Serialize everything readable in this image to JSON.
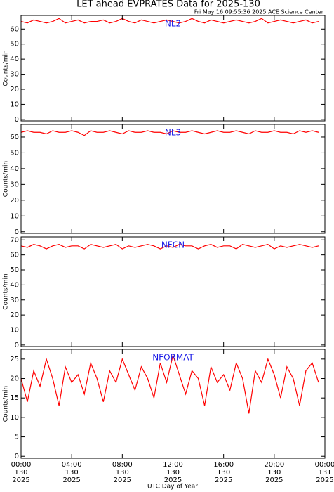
{
  "header": {
    "title": "LET ahead EVPRATES Data for 2025-130",
    "subtitle": "Fri May 16 09:55:36 2025 ACE Science Center",
    "xlabel": "UTC Day of Year"
  },
  "chart_data": [
    {
      "type": "line",
      "ylabel": "Counts/min",
      "xlim": [
        0,
        24
      ],
      "ylim": [
        -1,
        69
      ],
      "yticks": [
        0,
        10,
        20,
        30,
        40,
        50,
        60
      ],
      "x": [
        0,
        0.5,
        1,
        1.5,
        2,
        2.5,
        3,
        3.5,
        4,
        4.5,
        5,
        5.5,
        6,
        6.5,
        7,
        7.5,
        8,
        8.5,
        9,
        9.5,
        10,
        10.5,
        11,
        11.5,
        12,
        12.5,
        13,
        13.5,
        14,
        14.5,
        15,
        15.5,
        16,
        16.5,
        17,
        17.5,
        18,
        18.5,
        19,
        19.5,
        20,
        20.5,
        21,
        21.5,
        22,
        22.5,
        23,
        23.5
      ],
      "series": [
        {
          "name": "NL2",
          "color": "#ff0000",
          "values": [
            65,
            64,
            66,
            65,
            64,
            65,
            67,
            64,
            65,
            66,
            64,
            65,
            65,
            66,
            64,
            65,
            67,
            65,
            64,
            66,
            65,
            64,
            65,
            66,
            65,
            64,
            65,
            67,
            65,
            64,
            66,
            65,
            64,
            65,
            66,
            65,
            64,
            65,
            67,
            64,
            65,
            66,
            65,
            64,
            65,
            66,
            64,
            65
          ]
        }
      ]
    },
    {
      "type": "line",
      "ylabel": "Counts/min",
      "xlim": [
        0,
        24
      ],
      "ylim": [
        -1,
        68
      ],
      "yticks": [
        0,
        10,
        20,
        30,
        40,
        50,
        60
      ],
      "x": [
        0,
        0.5,
        1,
        1.5,
        2,
        2.5,
        3,
        3.5,
        4,
        4.5,
        5,
        5.5,
        6,
        6.5,
        7,
        7.5,
        8,
        8.5,
        9,
        9.5,
        10,
        10.5,
        11,
        11.5,
        12,
        12.5,
        13,
        13.5,
        14,
        14.5,
        15,
        15.5,
        16,
        16.5,
        17,
        17.5,
        18,
        18.5,
        19,
        19.5,
        20,
        20.5,
        21,
        21.5,
        22,
        22.5,
        23,
        23.5
      ],
      "series": [
        {
          "name": "NL3",
          "color": "#ff0000",
          "values": [
            63,
            64,
            63,
            63,
            62,
            64,
            63,
            63,
            64,
            63,
            61,
            64,
            63,
            63,
            64,
            63,
            62,
            64,
            63,
            63,
            64,
            63,
            63,
            62,
            64,
            63,
            63,
            64,
            63,
            62,
            63,
            64,
            63,
            63,
            64,
            63,
            62,
            64,
            63,
            63,
            64,
            63,
            63,
            62,
            64,
            63,
            64,
            63
          ]
        }
      ]
    },
    {
      "type": "line",
      "ylabel": "Counts/min",
      "xlim": [
        0,
        24
      ],
      "ylim": [
        -1,
        72
      ],
      "yticks": [
        0,
        10,
        20,
        30,
        40,
        50,
        60,
        70
      ],
      "x": [
        0,
        0.5,
        1,
        1.5,
        2,
        2.5,
        3,
        3.5,
        4,
        4.5,
        5,
        5.5,
        6,
        6.5,
        7,
        7.5,
        8,
        8.5,
        9,
        9.5,
        10,
        10.5,
        11,
        11.5,
        12,
        12.5,
        13,
        13.5,
        14,
        14.5,
        15,
        15.5,
        16,
        16.5,
        17,
        17.5,
        18,
        18.5,
        19,
        19.5,
        20,
        20.5,
        21,
        21.5,
        22,
        22.5,
        23,
        23.5
      ],
      "series": [
        {
          "name": "NFCN",
          "color": "#ff0000",
          "values": [
            66,
            65,
            67,
            66,
            64,
            66,
            67,
            65,
            66,
            66,
            64,
            67,
            66,
            65,
            66,
            67,
            64,
            66,
            65,
            66,
            67,
            66,
            64,
            66,
            65,
            67,
            66,
            66,
            64,
            66,
            67,
            65,
            66,
            66,
            64,
            67,
            66,
            65,
            66,
            67,
            64,
            66,
            65,
            66,
            67,
            66,
            65,
            66
          ]
        }
      ]
    },
    {
      "type": "line",
      "ylabel": "Counts/min",
      "xlim": [
        0,
        24
      ],
      "ylim": [
        -0.5,
        27.5
      ],
      "yticks": [
        0,
        5,
        10,
        15,
        20,
        25
      ],
      "x": [
        0,
        0.5,
        1,
        1.5,
        2,
        2.5,
        3,
        3.5,
        4,
        4.5,
        5,
        5.5,
        6,
        6.5,
        7,
        7.5,
        8,
        8.5,
        9,
        9.5,
        10,
        10.5,
        11,
        11.5,
        12,
        12.5,
        13,
        13.5,
        14,
        14.5,
        15,
        15.5,
        16,
        16.5,
        17,
        17.5,
        18,
        18.5,
        19,
        19.5,
        20,
        20.5,
        21,
        21.5,
        22,
        22.5,
        23,
        23.5
      ],
      "series": [
        {
          "name": "NFORMAT",
          "color": "#ff0000",
          "values": [
            20,
            14,
            22,
            18,
            25,
            20,
            13,
            23,
            19,
            21,
            16,
            24,
            20,
            14,
            22,
            19,
            25,
            21,
            17,
            23,
            20,
            15,
            24,
            19,
            26,
            21,
            16,
            22,
            20,
            13,
            23,
            19,
            21,
            17,
            24,
            20,
            11,
            22,
            19,
            25,
            21,
            15,
            23,
            20,
            13,
            22,
            24,
            19
          ]
        }
      ],
      "xticks": [
        {
          "value": 0,
          "label": "00:00"
        },
        {
          "value": 4,
          "label": "04:00"
        },
        {
          "value": 8,
          "label": "08:00"
        },
        {
          "value": 12,
          "label": "12:00"
        },
        {
          "value": 16,
          "label": "16:00"
        },
        {
          "value": 20,
          "label": "20:00"
        },
        {
          "value": 24,
          "label": "00:00"
        }
      ],
      "xtick_days": [
        "130",
        "130",
        "130",
        "130",
        "130",
        "130",
        "131"
      ],
      "xtick_years": [
        "2025",
        "2025",
        "2025",
        "2025",
        "2025",
        "2025",
        "2025"
      ]
    }
  ]
}
